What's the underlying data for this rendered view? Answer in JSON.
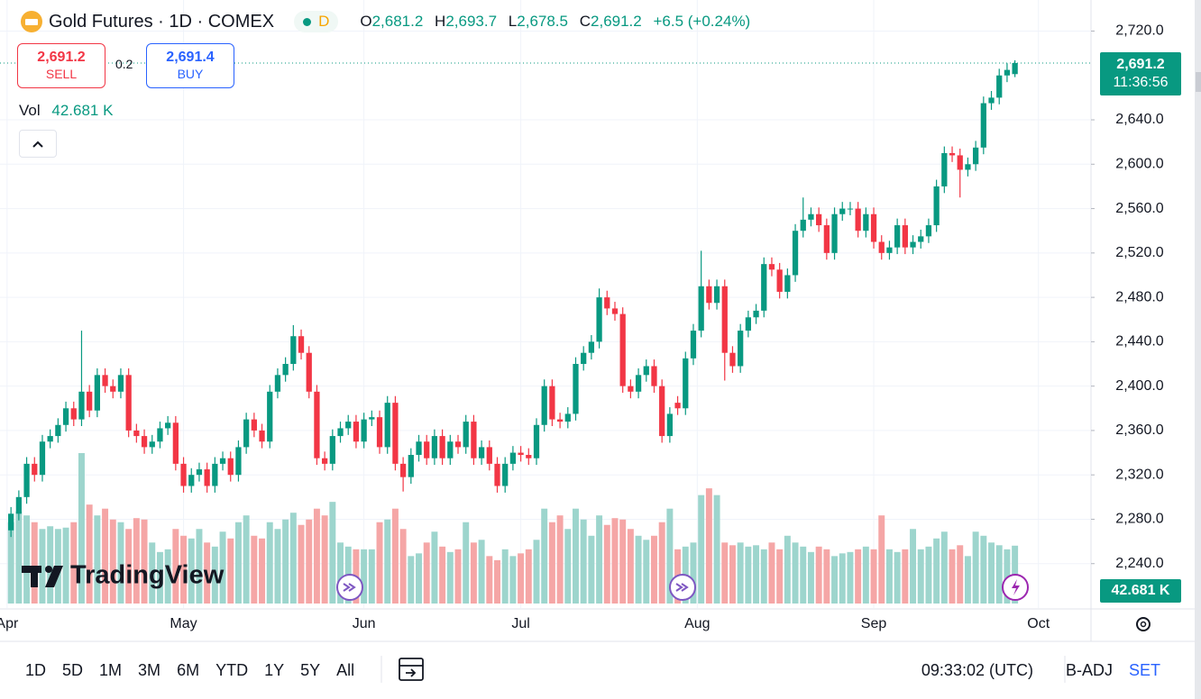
{
  "header": {
    "title": "Gold Futures · 1D · COMEX",
    "badge": "D",
    "open_label": "O",
    "open": "2,681.2",
    "high_label": "H",
    "high": "2,693.7",
    "low_label": "L",
    "low": "2,678.5",
    "close_label": "C",
    "close": "2,691.2",
    "change": "+6.5 (+0.24%)"
  },
  "trade": {
    "sell_price": "2,691.2",
    "sell": "SELL",
    "spread": "0.2",
    "buy_price": "2,691.4",
    "buy": "BUY"
  },
  "volume_legend": {
    "label": "Vol",
    "value": "42.681 K"
  },
  "price_label": {
    "price": "2,691.2",
    "countdown": "11:36:56"
  },
  "volume_label": "42.681 K",
  "logo": "TradingView",
  "toolbar": {
    "ranges": [
      "1D",
      "5D",
      "1M",
      "3M",
      "6M",
      "YTD",
      "1Y",
      "5Y",
      "All"
    ],
    "time": "09:33:02 (UTC)",
    "adjust": "B-ADJ",
    "settlement": "SET"
  },
  "chart_data": {
    "type": "candlestick",
    "up_color": "#089981",
    "down_color": "#f23645",
    "volume_up_color": "#9dd5cd",
    "volume_down_color": "#f5a6a6",
    "grid": true,
    "xlim": [
      -1.4,
      137.7
    ],
    "xticks": [
      {
        "value": -0.5,
        "label": "Apr"
      },
      {
        "value": 22,
        "label": "May"
      },
      {
        "value": 45,
        "label": "Jun"
      },
      {
        "value": 65,
        "label": "Jul"
      },
      {
        "value": 87.5,
        "label": "Aug"
      },
      {
        "value": 110,
        "label": "Sep"
      },
      {
        "value": 131,
        "label": "Oct"
      }
    ],
    "ylim": [
      2200,
      2748
    ],
    "yticks": [
      {
        "value": 2240,
        "label": "2,240.0"
      },
      {
        "value": 2280,
        "label": "2,280.0"
      },
      {
        "value": 2320,
        "label": "2,320.0"
      },
      {
        "value": 2360,
        "label": "2,360.0"
      },
      {
        "value": 2400,
        "label": "2,400.0"
      },
      {
        "value": 2440,
        "label": "2,440.0"
      },
      {
        "value": 2480,
        "label": "2,480.0"
      },
      {
        "value": 2520,
        "label": "2,520.0"
      },
      {
        "value": 2560,
        "label": "2,560.0"
      },
      {
        "value": 2600,
        "label": "2,600.0"
      },
      {
        "value": 2640,
        "label": "2,640.0"
      },
      {
        "value": 2720,
        "label": "2,720.0"
      }
    ],
    "open": [
      2270,
      2285,
      2300,
      2330,
      2320,
      2350,
      2355,
      2365,
      2380,
      2370,
      2395,
      2378,
      2410,
      2400,
      2395,
      2410,
      2360,
      2355,
      2345,
      2350,
      2362,
      2367,
      2330,
      2310,
      2320,
      2325,
      2310,
      2330,
      2335,
      2320,
      2345,
      2370,
      2360,
      2350,
      2395,
      2410,
      2420,
      2445,
      2430,
      2395,
      2335,
      2330,
      2355,
      2362,
      2368,
      2350,
      2370,
      2372,
      2345,
      2385,
      2330,
      2318,
      2338,
      2350,
      2335,
      2355,
      2335,
      2350,
      2345,
      2368,
      2335,
      2345,
      2330,
      2310,
      2330,
      2340,
      2338,
      2335,
      2365,
      2400,
      2370,
      2368,
      2375,
      2420,
      2430,
      2440,
      2480,
      2470,
      2465,
      2400,
      2395,
      2410,
      2418,
      2400,
      2355,
      2385,
      2380,
      2425,
      2450,
      2490,
      2475,
      2490,
      2430,
      2418,
      2450,
      2462,
      2468,
      2510,
      2505,
      2485,
      2500,
      2540,
      2550,
      2555,
      2545,
      2520,
      2555,
      2560,
      2560,
      2540,
      2555,
      2530,
      2520,
      2525,
      2545,
      2525,
      2530,
      2535,
      2545,
      2580,
      2610,
      2608,
      2595,
      2600,
      2615,
      2655,
      2660,
      2680,
      2681.2
    ],
    "high": [
      2291,
      2306,
      2336,
      2336,
      2356,
      2361,
      2371,
      2386,
      2386,
      2450,
      2401,
      2416,
      2416,
      2406,
      2416,
      2416,
      2366,
      2361,
      2356,
      2368,
      2373,
      2373,
      2336,
      2326,
      2331,
      2331,
      2336,
      2341,
      2341,
      2351,
      2376,
      2376,
      2366,
      2401,
      2416,
      2426,
      2455,
      2451,
      2436,
      2401,
      2341,
      2361,
      2368,
      2374,
      2374,
      2376,
      2378,
      2378,
      2391,
      2391,
      2336,
      2344,
      2356,
      2356,
      2361,
      2361,
      2356,
      2356,
      2374,
      2374,
      2351,
      2351,
      2336,
      2336,
      2346,
      2346,
      2344,
      2371,
      2406,
      2406,
      2376,
      2381,
      2426,
      2436,
      2446,
      2488,
      2486,
      2476,
      2471,
      2406,
      2416,
      2424,
      2424,
      2406,
      2381,
      2391,
      2431,
      2456,
      2522,
      2496,
      2496,
      2496,
      2436,
      2456,
      2468,
      2474,
      2516,
      2516,
      2511,
      2506,
      2546,
      2570,
      2561,
      2561,
      2551,
      2561,
      2566,
      2566,
      2566,
      2561,
      2561,
      2536,
      2531,
      2551,
      2551,
      2536,
      2541,
      2551,
      2586,
      2616,
      2616,
      2614,
      2606,
      2621,
      2661,
      2666,
      2686,
      2691,
      2693.7
    ],
    "low": [
      2264,
      2279,
      2294,
      2314,
      2314,
      2344,
      2349,
      2359,
      2364,
      2364,
      2372,
      2372,
      2394,
      2389,
      2389,
      2354,
      2349,
      2339,
      2339,
      2344,
      2356,
      2324,
      2304,
      2304,
      2314,
      2304,
      2304,
      2324,
      2314,
      2314,
      2339,
      2354,
      2344,
      2344,
      2389,
      2404,
      2414,
      2424,
      2389,
      2329,
      2324,
      2324,
      2349,
      2356,
      2344,
      2344,
      2364,
      2339,
      2339,
      2324,
      2305,
      2312,
      2332,
      2329,
      2329,
      2329,
      2329,
      2339,
      2339,
      2329,
      2329,
      2324,
      2304,
      2304,
      2324,
      2332,
      2329,
      2329,
      2359,
      2364,
      2362,
      2362,
      2369,
      2414,
      2424,
      2434,
      2464,
      2459,
      2394,
      2389,
      2389,
      2404,
      2394,
      2349,
      2349,
      2374,
      2374,
      2419,
      2444,
      2469,
      2469,
      2405,
      2412,
      2412,
      2444,
      2456,
      2462,
      2499,
      2479,
      2479,
      2494,
      2534,
      2544,
      2539,
      2514,
      2514,
      2549,
      2554,
      2534,
      2534,
      2524,
      2514,
      2514,
      2519,
      2519,
      2519,
      2524,
      2529,
      2539,
      2574,
      2602,
      2570,
      2589,
      2594,
      2609,
      2649,
      2654,
      2674,
      2678.5
    ],
    "close": [
      2285,
      2300,
      2330,
      2320,
      2350,
      2355,
      2365,
      2380,
      2370,
      2395,
      2378,
      2410,
      2400,
      2395,
      2410,
      2360,
      2355,
      2345,
      2350,
      2362,
      2367,
      2330,
      2310,
      2320,
      2325,
      2310,
      2330,
      2335,
      2320,
      2345,
      2370,
      2360,
      2350,
      2395,
      2410,
      2420,
      2445,
      2430,
      2395,
      2335,
      2330,
      2355,
      2362,
      2368,
      2350,
      2370,
      2372,
      2345,
      2385,
      2330,
      2318,
      2338,
      2350,
      2335,
      2355,
      2335,
      2350,
      2345,
      2368,
      2335,
      2345,
      2330,
      2310,
      2330,
      2340,
      2338,
      2335,
      2365,
      2400,
      2370,
      2368,
      2375,
      2420,
      2430,
      2440,
      2480,
      2470,
      2465,
      2400,
      2395,
      2410,
      2418,
      2400,
      2355,
      2375,
      2380,
      2425,
      2450,
      2490,
      2475,
      2490,
      2430,
      2418,
      2450,
      2462,
      2468,
      2510,
      2505,
      2485,
      2500,
      2540,
      2550,
      2555,
      2545,
      2520,
      2555,
      2560,
      2560,
      2540,
      2555,
      2530,
      2520,
      2525,
      2545,
      2525,
      2530,
      2535,
      2545,
      2580,
      2610,
      2608,
      2595,
      2600,
      2615,
      2655,
      2660,
      2680,
      2685,
      2691.2
    ],
    "volume": [
      60,
      68,
      65,
      60,
      55,
      57,
      55,
      56,
      60,
      111,
      73,
      65,
      70,
      62,
      60,
      55,
      63,
      62,
      45,
      38,
      40,
      55,
      50,
      48,
      55,
      45,
      42,
      53,
      48,
      60,
      65,
      50,
      48,
      60,
      55,
      62,
      67,
      58,
      62,
      70,
      65,
      75,
      45,
      42,
      40,
      40,
      40,
      60,
      62,
      70,
      55,
      35,
      37,
      45,
      53,
      42,
      38,
      40,
      60,
      45,
      47,
      35,
      32,
      40,
      35,
      37,
      40,
      47,
      70,
      60,
      65,
      55,
      70,
      62,
      50,
      65,
      58,
      63,
      62,
      55,
      50,
      47,
      50,
      60,
      70,
      40,
      42,
      45,
      80,
      85,
      80,
      45,
      43,
      45,
      42,
      43,
      40,
      45,
      40,
      50,
      45,
      42,
      38,
      42,
      40,
      35,
      37,
      38,
      40,
      42,
      40,
      65,
      40,
      38,
      40,
      55,
      40,
      42,
      48,
      53,
      40,
      43,
      35,
      53,
      50,
      45,
      43,
      40,
      42.681
    ]
  }
}
